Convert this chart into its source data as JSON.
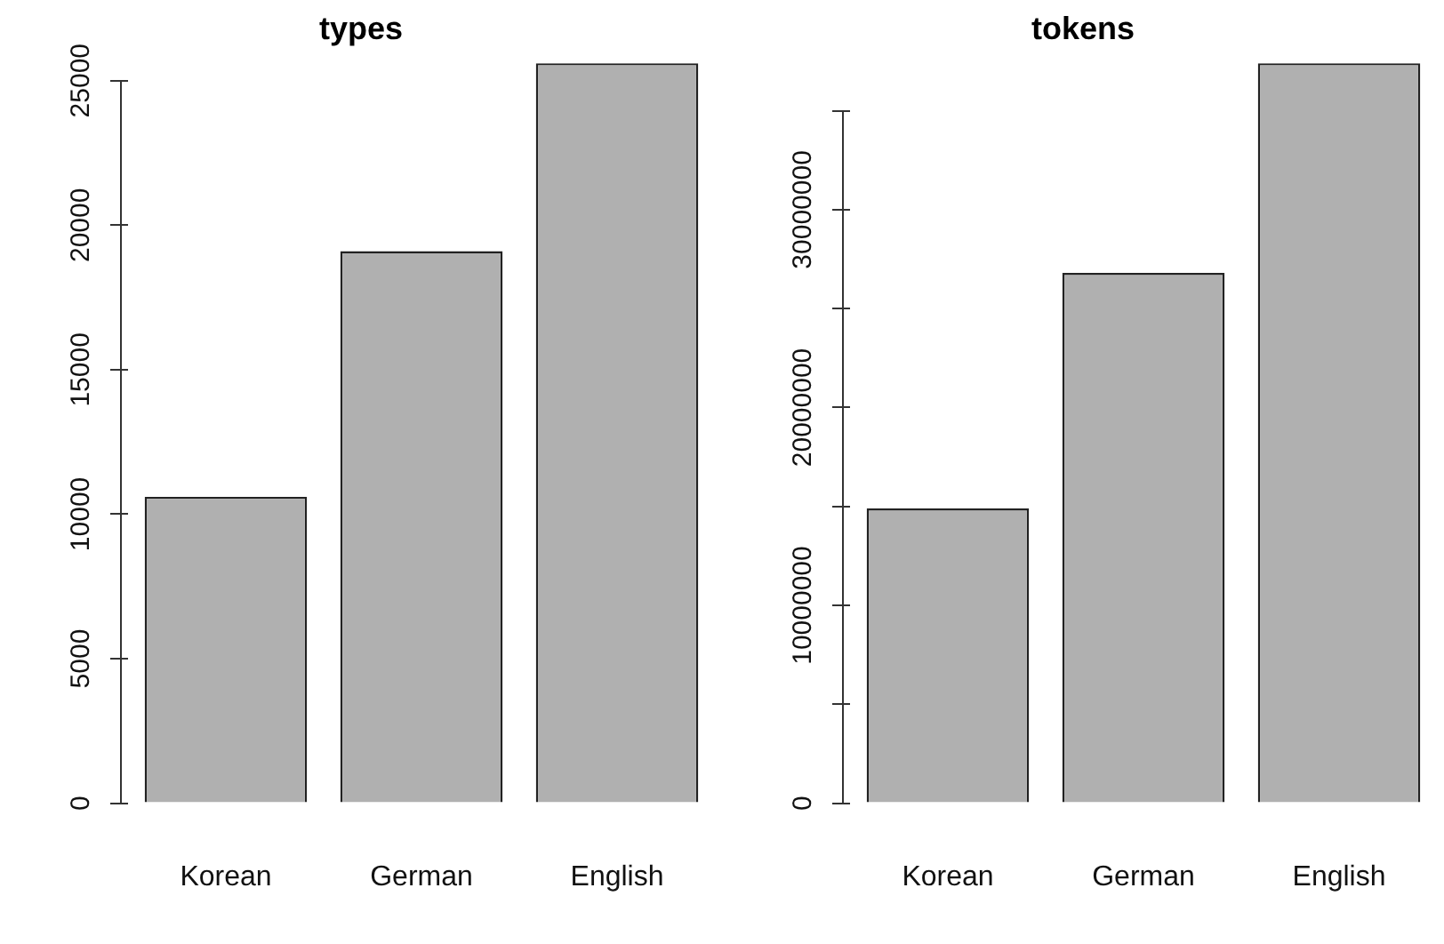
{
  "chart_data": [
    {
      "type": "bar",
      "title": "types",
      "categories": [
        "Korean",
        "German",
        "English"
      ],
      "values": [
        10600,
        19100,
        25600
      ],
      "color": "#b0b0b0",
      "ylim": [
        0,
        25600
      ],
      "yticks": [
        0,
        5000,
        10000,
        15000,
        20000,
        25000
      ],
      "grid": false
    },
    {
      "type": "bar",
      "title": "tokens",
      "categories": [
        "Korean",
        "German",
        "English"
      ],
      "values": [
        14900000,
        26800000,
        37400000
      ],
      "color": "#b0b0b0",
      "ylim": [
        0,
        37400000
      ],
      "yticks": [
        0,
        {
          "value": 5000000,
          "label": null
        },
        10000000,
        {
          "value": 15000000,
          "label": null
        },
        20000000,
        {
          "value": 25000000,
          "label": null
        },
        30000000,
        {
          "value": 35000000,
          "label": null
        }
      ],
      "grid": false
    }
  ]
}
